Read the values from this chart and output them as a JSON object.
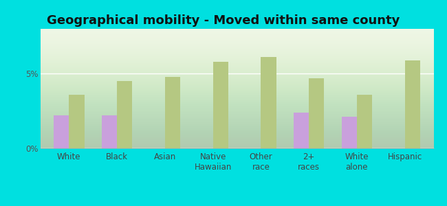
{
  "title": "Geographical mobility - Moved within same county",
  "categories": [
    "White",
    "Black",
    "Asian",
    "Native\nHawaiian",
    "Other\nrace",
    "2+\nraces",
    "White\nalone",
    "Hispanic"
  ],
  "holiday_city_values": [
    2.2,
    2.2,
    0.0,
    0.0,
    0.0,
    2.4,
    2.1,
    0.0
  ],
  "new_jersey_values": [
    3.6,
    4.5,
    4.8,
    5.8,
    6.1,
    4.7,
    3.6,
    5.9
  ],
  "bar_color_hc": "#c9a0dc",
  "bar_color_nj": "#b5c882",
  "background_top": "#f0f8e8",
  "background_bottom": "#d8eed8",
  "outer_background": "#00e0e0",
  "ylabel_ticks": [
    "0%",
    "5%"
  ],
  "yticks": [
    0,
    5
  ],
  "ylim": [
    0,
    8
  ],
  "bar_width": 0.32,
  "title_fontsize": 13,
  "tick_fontsize": 8.5,
  "legend_fontsize": 9
}
